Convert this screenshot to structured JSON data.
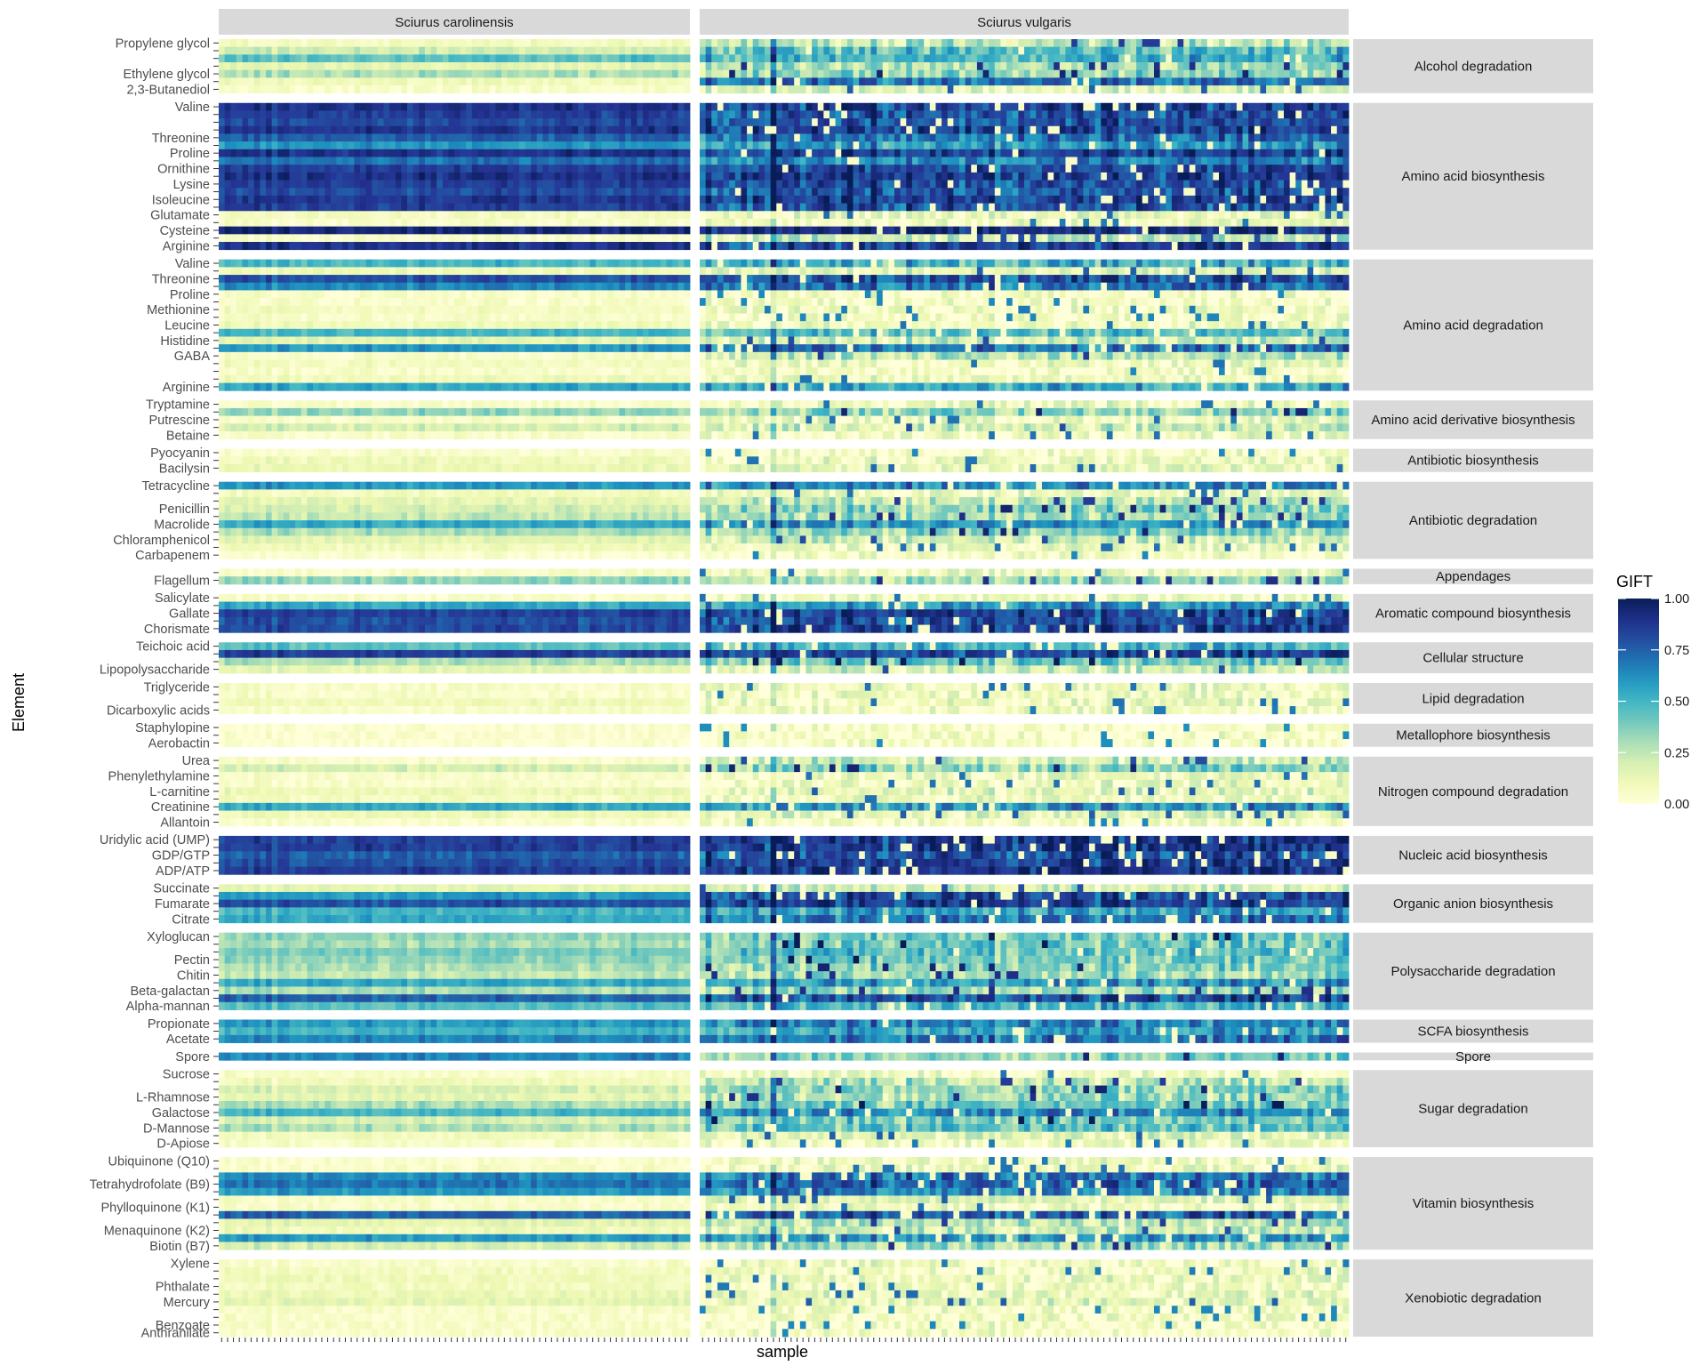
{
  "chart_data": {
    "type": "heatmap",
    "xlabel": "sample",
    "ylabel": "Element",
    "x_facets": [
      "Sciurus carolinensis",
      "Sciurus vulgaris"
    ],
    "samples_per_facet": [
      80,
      110
    ],
    "legend": {
      "title": "GIFT",
      "ticks": [
        "1.00",
        "0.75",
        "0.50",
        "0.25",
        "0.00"
      ],
      "range": [
        0,
        1
      ],
      "placement": "right",
      "colors": [
        "#ffffd9",
        "#edf8b1",
        "#c7e9b4",
        "#7fcdbb",
        "#41b6c4",
        "#1d91c0",
        "#225ea8",
        "#253494",
        "#081d58"
      ]
    },
    "groups": [
      {
        "name": "Alcohol degradation",
        "labels": [
          "Propylene glycol",
          "Ethylene glycol",
          "2,3-Butanediol"
        ],
        "rows": [
          {
            "label": "Propylene glycol",
            "c": 0.08,
            "v": 0.25
          },
          {
            "label": "",
            "c": 0.22,
            "v": 0.45
          },
          {
            "label": "",
            "c": 0.45,
            "v": 0.5
          },
          {
            "label": "",
            "c": 0.15,
            "v": 0.3
          },
          {
            "label": "Ethylene glycol",
            "c": 0.3,
            "v": 0.35
          },
          {
            "label": "",
            "c": 0.1,
            "v": 0.7
          },
          {
            "label": "2,3-Butanediol",
            "c": 0.05,
            "v": 0.15
          }
        ]
      },
      {
        "name": "Amino acid biosynthesis",
        "labels": [
          "Valine",
          "Threonine",
          "Proline",
          "Ornithine",
          "Lysine",
          "Isoleucine",
          "Glutamate",
          "Cysteine",
          "Arginine"
        ],
        "rows": [
          {
            "label": "Valine",
            "c": 0.9,
            "v": 0.85
          },
          {
            "label": "",
            "c": 0.85,
            "v": 0.8
          },
          {
            "label": "",
            "c": 0.82,
            "v": 0.78
          },
          {
            "label": "",
            "c": 0.88,
            "v": 0.85
          },
          {
            "label": "Threonine",
            "c": 0.75,
            "v": 0.7
          },
          {
            "label": "",
            "c": 0.6,
            "v": 0.6
          },
          {
            "label": "Proline",
            "c": 0.9,
            "v": 0.85
          },
          {
            "label": "",
            "c": 0.7,
            "v": 0.65
          },
          {
            "label": "Ornithine",
            "c": 0.85,
            "v": 0.8
          },
          {
            "label": "",
            "c": 0.9,
            "v": 0.88
          },
          {
            "label": "Lysine",
            "c": 0.85,
            "v": 0.8
          },
          {
            "label": "",
            "c": 0.8,
            "v": 0.78
          },
          {
            "label": "Isoleucine",
            "c": 0.88,
            "v": 0.85
          },
          {
            "label": "",
            "c": 0.85,
            "v": 0.8
          },
          {
            "label": "Glutamate",
            "c": 0.08,
            "v": 0.12
          },
          {
            "label": "",
            "c": 0.05,
            "v": 0.08
          },
          {
            "label": "Cysteine",
            "c": 0.95,
            "v": 0.92
          },
          {
            "label": "",
            "c": 0.05,
            "v": 0.2
          },
          {
            "label": "Arginine",
            "c": 0.9,
            "v": 0.85
          }
        ]
      },
      {
        "name": "Amino acid degradation",
        "labels": [
          "Valine",
          "Threonine",
          "Proline",
          "Methionine",
          "Leucine",
          "Histidine",
          "GABA",
          "Arginine"
        ],
        "rows": [
          {
            "label": "Valine",
            "c": 0.5,
            "v": 0.5
          },
          {
            "label": "",
            "c": 0.1,
            "v": 0.15
          },
          {
            "label": "Threonine",
            "c": 0.8,
            "v": 0.8
          },
          {
            "label": "",
            "c": 0.65,
            "v": 0.7
          },
          {
            "label": "Proline",
            "c": 0.05,
            "v": 0.05
          },
          {
            "label": "",
            "c": 0.05,
            "v": 0.05
          },
          {
            "label": "Methionine",
            "c": 0.08,
            "v": 0.08
          },
          {
            "label": "",
            "c": 0.05,
            "v": 0.05
          },
          {
            "label": "Leucine",
            "c": 0.1,
            "v": 0.1
          },
          {
            "label": "",
            "c": 0.5,
            "v": 0.45
          },
          {
            "label": "Histidine",
            "c": 0.15,
            "v": 0.2
          },
          {
            "label": "",
            "c": 0.6,
            "v": 0.7
          },
          {
            "label": "GABA",
            "c": 0.05,
            "v": 0.25
          },
          {
            "label": "",
            "c": 0.08,
            "v": 0.1
          },
          {
            "label": "",
            "c": 0.05,
            "v": 0.05
          },
          {
            "label": "",
            "c": 0.1,
            "v": 0.1
          },
          {
            "label": "Arginine",
            "c": 0.55,
            "v": 0.55
          }
        ]
      },
      {
        "name": "Amino acid derivative biosynthesis",
        "labels": [
          "Tryptamine",
          "Putrescine",
          "Betaine"
        ],
        "rows": [
          {
            "label": "Tryptamine",
            "c": 0.05,
            "v": 0.1
          },
          {
            "label": "",
            "c": 0.35,
            "v": 0.35
          },
          {
            "label": "Putrescine",
            "c": 0.05,
            "v": 0.1
          },
          {
            "label": "",
            "c": 0.2,
            "v": 0.2
          },
          {
            "label": "Betaine",
            "c": 0.05,
            "v": 0.1
          }
        ]
      },
      {
        "name": "Antibiotic biosynthesis",
        "labels": [
          "Pyocyanin",
          "Bacilysin"
        ],
        "rows": [
          {
            "label": "Pyocyanin",
            "c": 0.05,
            "v": 0.05
          },
          {
            "label": "",
            "c": 0.1,
            "v": 0.1
          },
          {
            "label": "Bacilysin",
            "c": 0.12,
            "v": 0.12
          }
        ]
      },
      {
        "name": "Antibiotic degradation",
        "labels": [
          "Tetracycline",
          "Penicillin",
          "Macrolide",
          "Chloramphenicol",
          "Carbapenem"
        ],
        "rows": [
          {
            "label": "Tetracycline",
            "c": 0.6,
            "v": 0.65
          },
          {
            "label": "",
            "c": 0.08,
            "v": 0.1
          },
          {
            "label": "",
            "c": 0.15,
            "v": 0.25
          },
          {
            "label": "Penicillin",
            "c": 0.2,
            "v": 0.35
          },
          {
            "label": "",
            "c": 0.25,
            "v": 0.3
          },
          {
            "label": "Macrolide",
            "c": 0.55,
            "v": 0.6
          },
          {
            "label": "",
            "c": 0.3,
            "v": 0.35
          },
          {
            "label": "Chloramphenicol",
            "c": 0.15,
            "v": 0.2
          },
          {
            "label": "",
            "c": 0.1,
            "v": 0.1
          },
          {
            "label": "Carbapenem",
            "c": 0.03,
            "v": 0.05
          }
        ]
      },
      {
        "name": "Appendages",
        "labels": [
          "Flagellum"
        ],
        "rows": [
          {
            "label": "",
            "c": 0.05,
            "v": 0.1
          },
          {
            "label": "Flagellum",
            "c": 0.35,
            "v": 0.3
          }
        ]
      },
      {
        "name": "Aromatic compound biosynthesis",
        "labels": [
          "Salicylate",
          "Gallate",
          "Chorismate"
        ],
        "rows": [
          {
            "label": "Salicylate",
            "c": 0.05,
            "v": 0.1
          },
          {
            "label": "",
            "c": 0.55,
            "v": 0.6
          },
          {
            "label": "Gallate",
            "c": 0.85,
            "v": 0.85
          },
          {
            "label": "",
            "c": 0.8,
            "v": 0.8
          },
          {
            "label": "Chorismate",
            "c": 0.82,
            "v": 0.85
          }
        ]
      },
      {
        "name": "Cellular structure",
        "labels": [
          "Teichoic acid",
          "Lipopolysaccharide"
        ],
        "rows": [
          {
            "label": "Teichoic acid",
            "c": 0.45,
            "v": 0.5
          },
          {
            "label": "",
            "c": 0.85,
            "v": 0.85
          },
          {
            "label": "",
            "c": 0.3,
            "v": 0.4
          },
          {
            "label": "Lipopolysaccharide",
            "c": 0.15,
            "v": 0.2
          }
        ]
      },
      {
        "name": "Lipid degradation",
        "labels": [
          "Triglyceride",
          "Dicarboxylic acids"
        ],
        "rows": [
          {
            "label": "Triglyceride",
            "c": 0.05,
            "v": 0.1
          },
          {
            "label": "",
            "c": 0.05,
            "v": 0.08
          },
          {
            "label": "",
            "c": 0.1,
            "v": 0.1
          },
          {
            "label": "Dicarboxylic acids",
            "c": 0.05,
            "v": 0.08
          }
        ]
      },
      {
        "name": "Metallophore biosynthesis",
        "labels": [
          "Staphylopine",
          "Aerobactin"
        ],
        "rows": [
          {
            "label": "Staphylopine",
            "c": 0.02,
            "v": 0.03
          },
          {
            "label": "",
            "c": 0.03,
            "v": 0.04
          },
          {
            "label": "Aerobactin",
            "c": 0.02,
            "v": 0.03
          }
        ]
      },
      {
        "name": "Nitrogen compound degradation",
        "labels": [
          "Urea",
          "Phenylethylamine",
          "L-carnitine",
          "Creatinine",
          "Allantoin"
        ],
        "rows": [
          {
            "label": "Urea",
            "c": 0.05,
            "v": 0.2
          },
          {
            "label": "",
            "c": 0.2,
            "v": 0.35
          },
          {
            "label": "Phenylethylamine",
            "c": 0.05,
            "v": 0.1
          },
          {
            "label": "",
            "c": 0.05,
            "v": 0.1
          },
          {
            "label": "L-carnitine",
            "c": 0.12,
            "v": 0.15
          },
          {
            "label": "",
            "c": 0.08,
            "v": 0.1
          },
          {
            "label": "Creatinine",
            "c": 0.55,
            "v": 0.6
          },
          {
            "label": "",
            "c": 0.1,
            "v": 0.15
          },
          {
            "label": "Allantoin",
            "c": 0.03,
            "v": 0.05
          }
        ]
      },
      {
        "name": "Nucleic acid biosynthesis",
        "labels": [
          "Uridylic acid (UMP)",
          "GDP/GTP",
          "ADP/ATP"
        ],
        "rows": [
          {
            "label": "Uridylic acid (UMP)",
            "c": 0.85,
            "v": 0.9
          },
          {
            "label": "",
            "c": 0.85,
            "v": 0.88
          },
          {
            "label": "GDP/GTP",
            "c": 0.75,
            "v": 0.8
          },
          {
            "label": "",
            "c": 0.8,
            "v": 0.85
          },
          {
            "label": "ADP/ATP",
            "c": 0.85,
            "v": 0.88
          }
        ]
      },
      {
        "name": "Organic anion biosynthesis",
        "labels": [
          "Succinate",
          "Fumarate",
          "Citrate"
        ],
        "rows": [
          {
            "label": "Succinate",
            "c": 0.15,
            "v": 0.2
          },
          {
            "label": "",
            "c": 0.6,
            "v": 0.8
          },
          {
            "label": "Fumarate",
            "c": 0.8,
            "v": 0.85
          },
          {
            "label": "",
            "c": 0.5,
            "v": 0.55
          },
          {
            "label": "Citrate",
            "c": 0.55,
            "v": 0.7
          }
        ]
      },
      {
        "name": "Polysaccharide degradation",
        "labels": [
          "Xyloglucan",
          "Pectin",
          "Chitin",
          "Beta-galactan",
          "Alpha-mannan"
        ],
        "rows": [
          {
            "label": "Xyloglucan",
            "c": 0.35,
            "v": 0.4
          },
          {
            "label": "",
            "c": 0.3,
            "v": 0.4
          },
          {
            "label": "",
            "c": 0.4,
            "v": 0.45
          },
          {
            "label": "Pectin",
            "c": 0.35,
            "v": 0.4
          },
          {
            "label": "",
            "c": 0.3,
            "v": 0.35
          },
          {
            "label": "Chitin",
            "c": 0.25,
            "v": 0.3
          },
          {
            "label": "",
            "c": 0.55,
            "v": 0.6
          },
          {
            "label": "Beta-galactan",
            "c": 0.3,
            "v": 0.3
          },
          {
            "label": "",
            "c": 0.75,
            "v": 0.8
          },
          {
            "label": "Alpha-mannan",
            "c": 0.45,
            "v": 0.5
          }
        ]
      },
      {
        "name": "SCFA biosynthesis",
        "labels": [
          "Propionate",
          "Acetate"
        ],
        "rows": [
          {
            "label": "Propionate",
            "c": 0.6,
            "v": 0.65
          },
          {
            "label": "",
            "c": 0.5,
            "v": 0.55
          },
          {
            "label": "Acetate",
            "c": 0.65,
            "v": 0.7
          }
        ]
      },
      {
        "name": "Spore",
        "labels": [
          "Spore"
        ],
        "rows": [
          {
            "label": "Spore",
            "c": 0.65,
            "v": 0.35
          }
        ]
      },
      {
        "name": "Sugar degradation",
        "labels": [
          "Sucrose",
          "L-Rhamnose",
          "Galactose",
          "D-Mannose",
          "D-Apiose"
        ],
        "rows": [
          {
            "label": "Sucrose",
            "c": 0.05,
            "v": 0.1
          },
          {
            "label": "",
            "c": 0.1,
            "v": 0.25
          },
          {
            "label": "",
            "c": 0.2,
            "v": 0.35
          },
          {
            "label": "L-Rhamnose",
            "c": 0.15,
            "v": 0.3
          },
          {
            "label": "",
            "c": 0.3,
            "v": 0.4
          },
          {
            "label": "Galactose",
            "c": 0.5,
            "v": 0.65
          },
          {
            "label": "",
            "c": 0.2,
            "v": 0.4
          },
          {
            "label": "D-Mannose",
            "c": 0.3,
            "v": 0.45
          },
          {
            "label": "",
            "c": 0.08,
            "v": 0.15
          },
          {
            "label": "D-Apiose",
            "c": 0.05,
            "v": 0.08
          }
        ]
      },
      {
        "name": "Vitamin biosynthesis",
        "labels": [
          "Ubiquinone (Q10)",
          "Tetrahydrofolate (B9)",
          "Phylloquinone (K1)",
          "Menaquinone (K2)",
          "Biotin (B7)"
        ],
        "rows": [
          {
            "label": "Ubiquinone (Q10)",
            "c": 0.03,
            "v": 0.08
          },
          {
            "label": "",
            "c": 0.05,
            "v": 0.1
          },
          {
            "label": "",
            "c": 0.65,
            "v": 0.7
          },
          {
            "label": "Tetrahydrofolate (B9)",
            "c": 0.7,
            "v": 0.75
          },
          {
            "label": "",
            "c": 0.6,
            "v": 0.65
          },
          {
            "label": "",
            "c": 0.05,
            "v": 0.15
          },
          {
            "label": "Phylloquinone (K1)",
            "c": 0.05,
            "v": 0.1
          },
          {
            "label": "",
            "c": 0.75,
            "v": 0.75
          },
          {
            "label": "",
            "c": 0.15,
            "v": 0.25
          },
          {
            "label": "Menaquinone (K2)",
            "c": 0.1,
            "v": 0.2
          },
          {
            "label": "",
            "c": 0.6,
            "v": 0.6
          },
          {
            "label": "Biotin (B7)",
            "c": 0.2,
            "v": 0.3
          }
        ]
      },
      {
        "name": "Xenobiotic degradation",
        "labels": [
          "Xylene",
          "Phthalate",
          "Mercury",
          "Benzoate",
          "Anthranilate"
        ],
        "rows": [
          {
            "label": "Xylene",
            "c": 0.05,
            "v": 0.08
          },
          {
            "label": "",
            "c": 0.08,
            "v": 0.08
          },
          {
            "label": "",
            "c": 0.1,
            "v": 0.1
          },
          {
            "label": "Phthalate",
            "c": 0.08,
            "v": 0.08
          },
          {
            "label": "",
            "c": 0.12,
            "v": 0.12
          },
          {
            "label": "Mercury",
            "c": 0.15,
            "v": 0.15
          },
          {
            "label": "",
            "c": 0.05,
            "v": 0.05
          },
          {
            "label": "",
            "c": 0.05,
            "v": 0.05
          },
          {
            "label": "Benzoate",
            "c": 0.05,
            "v": 0.05
          },
          {
            "label": "Anthranilate",
            "c": 0.05,
            "v": 0.05
          }
        ]
      }
    ]
  }
}
